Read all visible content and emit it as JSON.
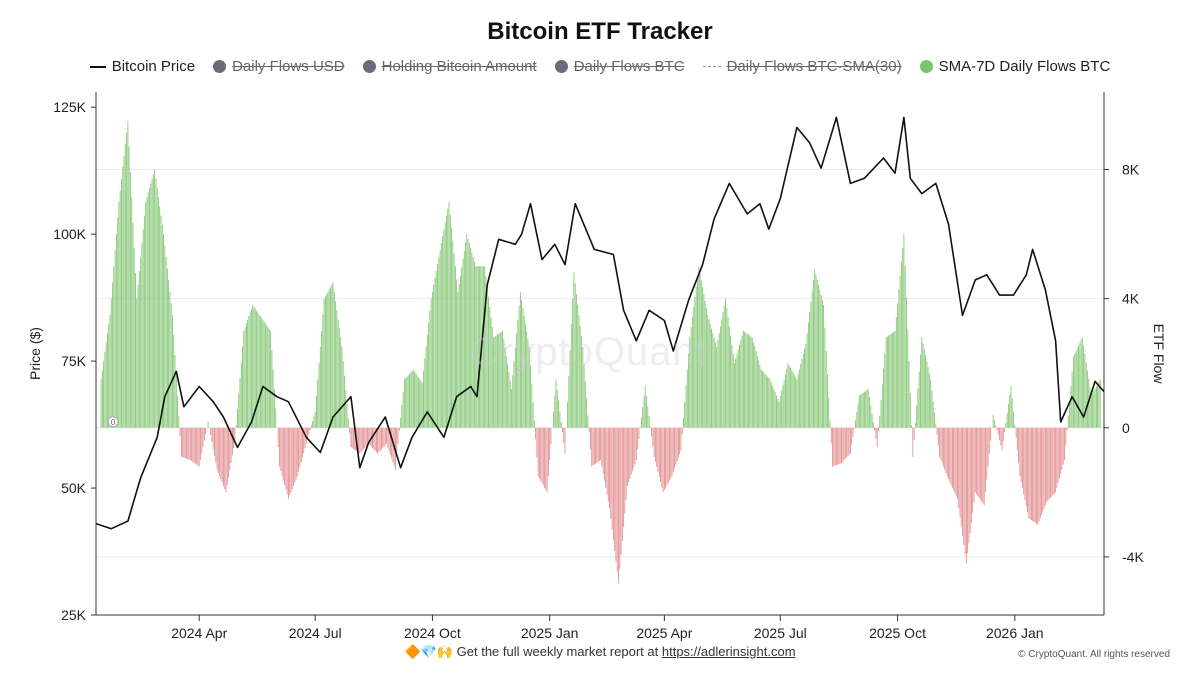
{
  "chart_data": {
    "type": "line+bar",
    "title": "Bitcoin ETF Tracker",
    "ylabel_left": "Price ($)",
    "ylabel_right": "ETF Flow",
    "ylim_left": [
      25000,
      128000
    ],
    "ylim_right": [
      -5800,
      10400
    ],
    "left_ticks": [
      "125K",
      "100K",
      "75K",
      "50K",
      "25K"
    ],
    "left_tick_values": [
      125000,
      100000,
      75000,
      50000,
      25000
    ],
    "right_ticks": [
      "8K",
      "4K",
      "0",
      "-4K"
    ],
    "right_tick_values": [
      8000,
      4000,
      0,
      -4000
    ],
    "x_tick_labels": [
      "2024 Apr",
      "2024 Jul",
      "2024 Oct",
      "2025 Jan",
      "2025 Apr",
      "2025 Jul",
      "2025 Oct",
      "2026 Jan"
    ],
    "x_tick_dates": [
      "2024-04-01",
      "2024-07-01",
      "2024-10-01",
      "2025-01-01",
      "2025-04-01",
      "2025-07-01",
      "2025-10-01",
      "2026-01-01"
    ],
    "x_range": [
      "2024-01-11",
      "2026-03-12"
    ],
    "legend": [
      {
        "label": "Bitcoin Price",
        "visible": true,
        "swatch": "line",
        "color": "#111111"
      },
      {
        "label": "Daily Flows USD",
        "visible": false,
        "swatch": "dot",
        "color": "#6b6b78"
      },
      {
        "label": "Holding Bitcoin Amount",
        "visible": false,
        "swatch": "dot",
        "color": "#6b6b78"
      },
      {
        "label": "Daily Flows BTC",
        "visible": false,
        "swatch": "dot",
        "color": "#6b6b78"
      },
      {
        "label": "Daily Flows BTC-SMA(30)",
        "visible": false,
        "swatch": "dash",
        "color": "#999999"
      },
      {
        "label": "SMA-7D Daily Flows BTC",
        "visible": true,
        "swatch": "dot",
        "color": "#7cc36a"
      }
    ],
    "colors": {
      "price": "#111111",
      "positive": "#7cc36a",
      "negative": "#e08585"
    },
    "series": [
      {
        "name": "Bitcoin Price",
        "dates": [
          "2024-01-11",
          "2024-01-23",
          "2024-02-05",
          "2024-02-15",
          "2024-02-28",
          "2024-03-05",
          "2024-03-14",
          "2024-03-20",
          "2024-04-01",
          "2024-04-12",
          "2024-04-20",
          "2024-05-01",
          "2024-05-12",
          "2024-05-21",
          "2024-06-01",
          "2024-06-10",
          "2024-06-24",
          "2024-07-05",
          "2024-07-15",
          "2024-07-29",
          "2024-08-05",
          "2024-08-12",
          "2024-08-25",
          "2024-09-06",
          "2024-09-15",
          "2024-09-27",
          "2024-10-10",
          "2024-10-20",
          "2024-10-31",
          "2024-11-05",
          "2024-11-13",
          "2024-11-22",
          "2024-12-05",
          "2024-12-10",
          "2024-12-17",
          "2024-12-26",
          "2025-01-05",
          "2025-01-13",
          "2025-01-21",
          "2025-02-05",
          "2025-02-20",
          "2025-02-28",
          "2025-03-10",
          "2025-03-20",
          "2025-04-01",
          "2025-04-08",
          "2025-04-20",
          "2025-05-01",
          "2025-05-10",
          "2025-05-22",
          "2025-06-05",
          "2025-06-15",
          "2025-06-22",
          "2025-07-01",
          "2025-07-14",
          "2025-07-24",
          "2025-08-02",
          "2025-08-14",
          "2025-08-25",
          "2025-09-05",
          "2025-09-20",
          "2025-09-29",
          "2025-10-06",
          "2025-10-11",
          "2025-10-20",
          "2025-10-31",
          "2025-11-10",
          "2025-11-21",
          "2025-12-01",
          "2025-12-10",
          "2025-12-20",
          "2025-12-31",
          "2026-01-10",
          "2026-01-15",
          "2026-01-25",
          "2026-02-02",
          "2026-02-06",
          "2026-02-15",
          "2026-02-24",
          "2026-03-05",
          "2026-03-12"
        ],
        "values": [
          43000,
          42000,
          43500,
          52000,
          60000,
          68000,
          73000,
          66000,
          70000,
          67000,
          64000,
          58000,
          63000,
          70000,
          68000,
          67000,
          60000,
          57000,
          64000,
          68000,
          54000,
          59000,
          64000,
          54000,
          60000,
          65000,
          60000,
          68000,
          70000,
          68000,
          90000,
          99000,
          98000,
          100000,
          106000,
          95000,
          98000,
          94000,
          106000,
          97000,
          96000,
          85000,
          79000,
          85000,
          83000,
          77000,
          87000,
          94000,
          103000,
          110000,
          104000,
          106000,
          101000,
          107000,
          121000,
          118000,
          113000,
          123000,
          110000,
          111000,
          115000,
          112000,
          123000,
          111000,
          108000,
          110000,
          102000,
          84000,
          91000,
          92000,
          88000,
          88000,
          92000,
          97000,
          89000,
          79000,
          63000,
          68000,
          64000,
          71000,
          69000
        ]
      },
      {
        "name": "SMA-7D Daily Flows BTC",
        "dates": [
          "2024-01-15",
          "2024-01-22",
          "2024-01-29",
          "2024-02-05",
          "2024-02-12",
          "2024-02-19",
          "2024-02-26",
          "2024-03-04",
          "2024-03-11",
          "2024-03-18",
          "2024-03-25",
          "2024-04-01",
          "2024-04-08",
          "2024-04-15",
          "2024-04-22",
          "2024-04-29",
          "2024-05-06",
          "2024-05-13",
          "2024-05-20",
          "2024-05-27",
          "2024-06-03",
          "2024-06-10",
          "2024-06-17",
          "2024-06-24",
          "2024-07-01",
          "2024-07-08",
          "2024-07-15",
          "2024-07-22",
          "2024-07-29",
          "2024-08-05",
          "2024-08-12",
          "2024-08-19",
          "2024-08-26",
          "2024-09-02",
          "2024-09-09",
          "2024-09-16",
          "2024-09-23",
          "2024-09-30",
          "2024-10-07",
          "2024-10-14",
          "2024-10-21",
          "2024-10-28",
          "2024-11-04",
          "2024-11-11",
          "2024-11-18",
          "2024-11-25",
          "2024-12-02",
          "2024-12-09",
          "2024-12-16",
          "2024-12-23",
          "2024-12-30",
          "2025-01-06",
          "2025-01-13",
          "2025-01-20",
          "2025-01-27",
          "2025-02-03",
          "2025-02-10",
          "2025-02-17",
          "2025-02-24",
          "2025-03-03",
          "2025-03-10",
          "2025-03-17",
          "2025-03-24",
          "2025-03-31",
          "2025-04-07",
          "2025-04-14",
          "2025-04-21",
          "2025-04-28",
          "2025-05-05",
          "2025-05-12",
          "2025-05-19",
          "2025-05-26",
          "2025-06-02",
          "2025-06-09",
          "2025-06-16",
          "2025-06-23",
          "2025-06-30",
          "2025-07-07",
          "2025-07-14",
          "2025-07-21",
          "2025-07-28",
          "2025-08-04",
          "2025-08-11",
          "2025-08-18",
          "2025-08-25",
          "2025-09-01",
          "2025-09-08",
          "2025-09-15",
          "2025-09-22",
          "2025-09-29",
          "2025-10-06",
          "2025-10-13",
          "2025-10-20",
          "2025-10-27",
          "2025-11-03",
          "2025-11-10",
          "2025-11-17",
          "2025-11-24",
          "2025-12-01",
          "2025-12-08",
          "2025-12-15",
          "2025-12-22",
          "2025-12-29",
          "2026-01-05",
          "2026-01-12",
          "2026-01-19",
          "2026-01-26",
          "2026-02-02",
          "2026-02-09",
          "2026-02-16",
          "2026-02-23",
          "2026-03-02",
          "2026-03-09"
        ],
        "values": [
          1500,
          3500,
          7000,
          9500,
          4000,
          7000,
          8000,
          6000,
          3500,
          -900,
          -1000,
          -1200,
          200,
          -1300,
          -2000,
          -400,
          3000,
          3800,
          3400,
          3000,
          -1200,
          -2200,
          -1500,
          -500,
          500,
          4000,
          4500,
          2500,
          -600,
          -800,
          -500,
          -800,
          -500,
          -1300,
          1500,
          1800,
          1400,
          4000,
          5500,
          7000,
          4200,
          6000,
          5000,
          5000,
          2800,
          3000,
          1200,
          4200,
          2500,
          -1500,
          -2000,
          1500,
          -800,
          4800,
          2500,
          -1200,
          -1000,
          -2500,
          -4800,
          -1800,
          -1000,
          1300,
          -900,
          -2000,
          -1500,
          -700,
          2800,
          5000,
          3500,
          2500,
          4000,
          2000,
          3000,
          2800,
          1800,
          1500,
          800,
          2000,
          1500,
          2600,
          4900,
          3800,
          -1200,
          -1100,
          -800,
          1000,
          1200,
          -600,
          2800,
          3000,
          6000,
          -900,
          2800,
          1500,
          -900,
          -1600,
          -2200,
          -4200,
          -2000,
          -2400,
          400,
          -700,
          1300,
          -1500,
          -2800,
          -3000,
          -2300,
          -2000,
          -1000,
          2200,
          2800,
          1000,
          1500
        ]
      }
    ]
  },
  "watermark": "CryptoQuant",
  "footer": {
    "icons": "🔶💎🙌",
    "text": "Get the full weekly market report at",
    "link": "https://adlerinsight.com"
  },
  "copyright": "© CryptoQuant. All rights reserved",
  "zero_marker": "0"
}
